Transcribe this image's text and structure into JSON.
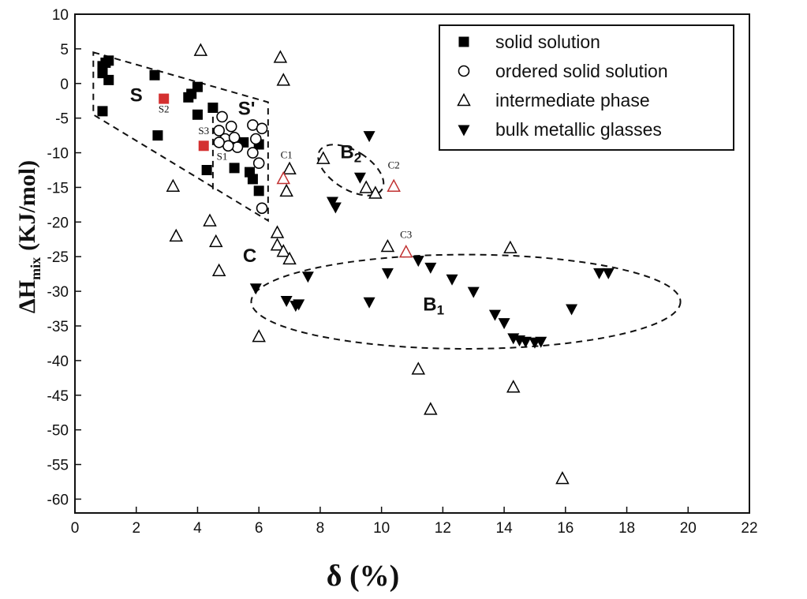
{
  "chart_data": {
    "type": "scatter",
    "xlabel": "δ (%)",
    "ylabel_main": "ΔH",
    "ylabel_sub": "mix",
    "ylabel_unit": "(KJ/mol)",
    "xlim": [
      0,
      22
    ],
    "ylim": [
      -62,
      10
    ],
    "xticks": [
      "0",
      "2",
      "4",
      "6",
      "8",
      "10",
      "12",
      "14",
      "16",
      "18",
      "20",
      "22"
    ],
    "yticks": [
      "10",
      "5",
      "0",
      "-5",
      "-10",
      "-15",
      "-20",
      "-25",
      "-30",
      "-35",
      "-40",
      "-45",
      "-50",
      "-55",
      "-60"
    ],
    "legend_position": "top-right",
    "series": [
      {
        "name": "solid solution",
        "marker": "square-filled",
        "color": "#000000",
        "points": [
          [
            0.9,
            2.5
          ],
          [
            1.0,
            3.0
          ],
          [
            1.1,
            3.3
          ],
          [
            0.9,
            1.5
          ],
          [
            1.1,
            0.5
          ],
          [
            0.9,
            -4.0
          ],
          [
            2.6,
            1.2
          ],
          [
            2.7,
            -7.5
          ],
          [
            3.7,
            -2.0
          ],
          [
            3.8,
            -1.5
          ],
          [
            4.0,
            -0.5
          ],
          [
            4.0,
            -4.5
          ],
          [
            4.5,
            -3.5
          ],
          [
            4.3,
            -12.5
          ],
          [
            5.2,
            -12.2
          ],
          [
            5.5,
            -8.5
          ],
          [
            5.7,
            -12.8
          ],
          [
            5.8,
            -13.8
          ],
          [
            6.0,
            -8.8
          ],
          [
            6.0,
            -15.5
          ]
        ]
      },
      {
        "name": "ordered solid solution",
        "marker": "circle-open",
        "color": "#000000",
        "points": [
          [
            4.8,
            -4.8
          ],
          [
            4.7,
            -6.8
          ],
          [
            4.9,
            -8.0
          ],
          [
            5.1,
            -6.2
          ],
          [
            5.2,
            -7.8
          ],
          [
            5.3,
            -9.2
          ],
          [
            5.0,
            -9.0
          ],
          [
            5.8,
            -6.0
          ],
          [
            5.9,
            -8.0
          ],
          [
            5.8,
            -10.0
          ],
          [
            6.0,
            -11.5
          ],
          [
            6.1,
            -6.5
          ],
          [
            6.1,
            -18.0
          ],
          [
            4.7,
            -8.5
          ]
        ]
      },
      {
        "name": "intermediate phase",
        "marker": "triangle-open",
        "color": "#000000",
        "points": [
          [
            4.1,
            4.8
          ],
          [
            6.7,
            3.8
          ],
          [
            6.8,
            0.5
          ],
          [
            7.0,
            -12.3
          ],
          [
            6.9,
            -15.5
          ],
          [
            8.1,
            -10.8
          ],
          [
            9.5,
            -15.0
          ],
          [
            9.8,
            -15.8
          ],
          [
            3.2,
            -14.8
          ],
          [
            3.3,
            -22.0
          ],
          [
            4.4,
            -19.8
          ],
          [
            4.6,
            -22.8
          ],
          [
            4.7,
            -27.0
          ],
          [
            6.6,
            -21.5
          ],
          [
            6.6,
            -23.3
          ],
          [
            6.8,
            -24.2
          ],
          [
            7.0,
            -25.3
          ],
          [
            6.0,
            -36.5
          ],
          [
            10.2,
            -23.5
          ],
          [
            14.2,
            -23.7
          ],
          [
            11.2,
            -41.2
          ],
          [
            11.6,
            -47.0
          ],
          [
            14.3,
            -43.8
          ],
          [
            15.9,
            -57.0
          ]
        ]
      },
      {
        "name": "bulk metallic glasses",
        "marker": "triangle-down-filled",
        "color": "#000000",
        "points": [
          [
            9.3,
            -13.5
          ],
          [
            9.6,
            -7.5
          ],
          [
            8.4,
            -17.0
          ],
          [
            8.5,
            -17.8
          ],
          [
            5.9,
            -29.5
          ],
          [
            6.9,
            -31.3
          ],
          [
            7.2,
            -32.0
          ],
          [
            7.3,
            -31.8
          ],
          [
            7.6,
            -27.8
          ],
          [
            9.6,
            -31.5
          ],
          [
            10.2,
            -27.3
          ],
          [
            11.2,
            -25.5
          ],
          [
            11.6,
            -26.5
          ],
          [
            12.3,
            -28.2
          ],
          [
            13.0,
            -30.0
          ],
          [
            13.7,
            -33.3
          ],
          [
            14.0,
            -34.5
          ],
          [
            14.3,
            -36.7
          ],
          [
            14.5,
            -37.0
          ],
          [
            14.7,
            -37.2
          ],
          [
            15.0,
            -37.3
          ],
          [
            15.2,
            -37.2
          ],
          [
            16.2,
            -32.5
          ],
          [
            17.1,
            -27.3
          ],
          [
            17.4,
            -27.3
          ]
        ]
      },
      {
        "marker": "square-filled",
        "color": "#d43030",
        "points": [
          [
            2.9,
            -2.2
          ],
          [
            4.2,
            -9.0
          ]
        ]
      },
      {
        "marker": "triangle-open",
        "color": "#c03030",
        "points": [
          [
            6.8,
            -13.7
          ],
          [
            10.4,
            -14.8
          ],
          [
            10.8,
            -24.3
          ]
        ]
      }
    ],
    "point_labels": [
      {
        "text": "S2",
        "x": 2.9,
        "y": -4.2
      },
      {
        "text": "S3",
        "x": 4.2,
        "y": -7.3
      },
      {
        "text": "S1",
        "x": 4.8,
        "y": -11.0
      },
      {
        "text": "C1",
        "x": 6.9,
        "y": -10.8
      },
      {
        "text": "C2",
        "x": 10.4,
        "y": -12.3
      },
      {
        "text": "C3",
        "x": 10.8,
        "y": -22.3
      }
    ],
    "regions": [
      {
        "label": "S",
        "label_at": [
          2.0,
          -2.6
        ],
        "polygon": [
          [
            0.6,
            4.5
          ],
          [
            6.3,
            -2.7
          ],
          [
            6.3,
            -19.8
          ],
          [
            0.6,
            -4.5
          ]
        ]
      },
      {
        "label": "S'",
        "label_at": [
          5.6,
          -4.5
        ],
        "polyline": [
          [
            4.5,
            -4.8
          ],
          [
            4.5,
            -15.5
          ]
        ]
      },
      {
        "label": "B2",
        "label_at": [
          9.0,
          -10.8
        ],
        "ellipse": {
          "cx": 9.0,
          "cy": -12.5,
          "rx": 2.3,
          "ry": 4.5,
          "angle": -58
        }
      },
      {
        "label": "B1",
        "label_at": [
          11.7,
          -32.8
        ],
        "ellipse": {
          "cx": 12.75,
          "cy": -31.5,
          "rx": 7.0,
          "ry": 6.8,
          "angle": 0
        }
      },
      {
        "label": "C",
        "label_at": [
          5.7,
          -25.8
        ]
      }
    ]
  }
}
